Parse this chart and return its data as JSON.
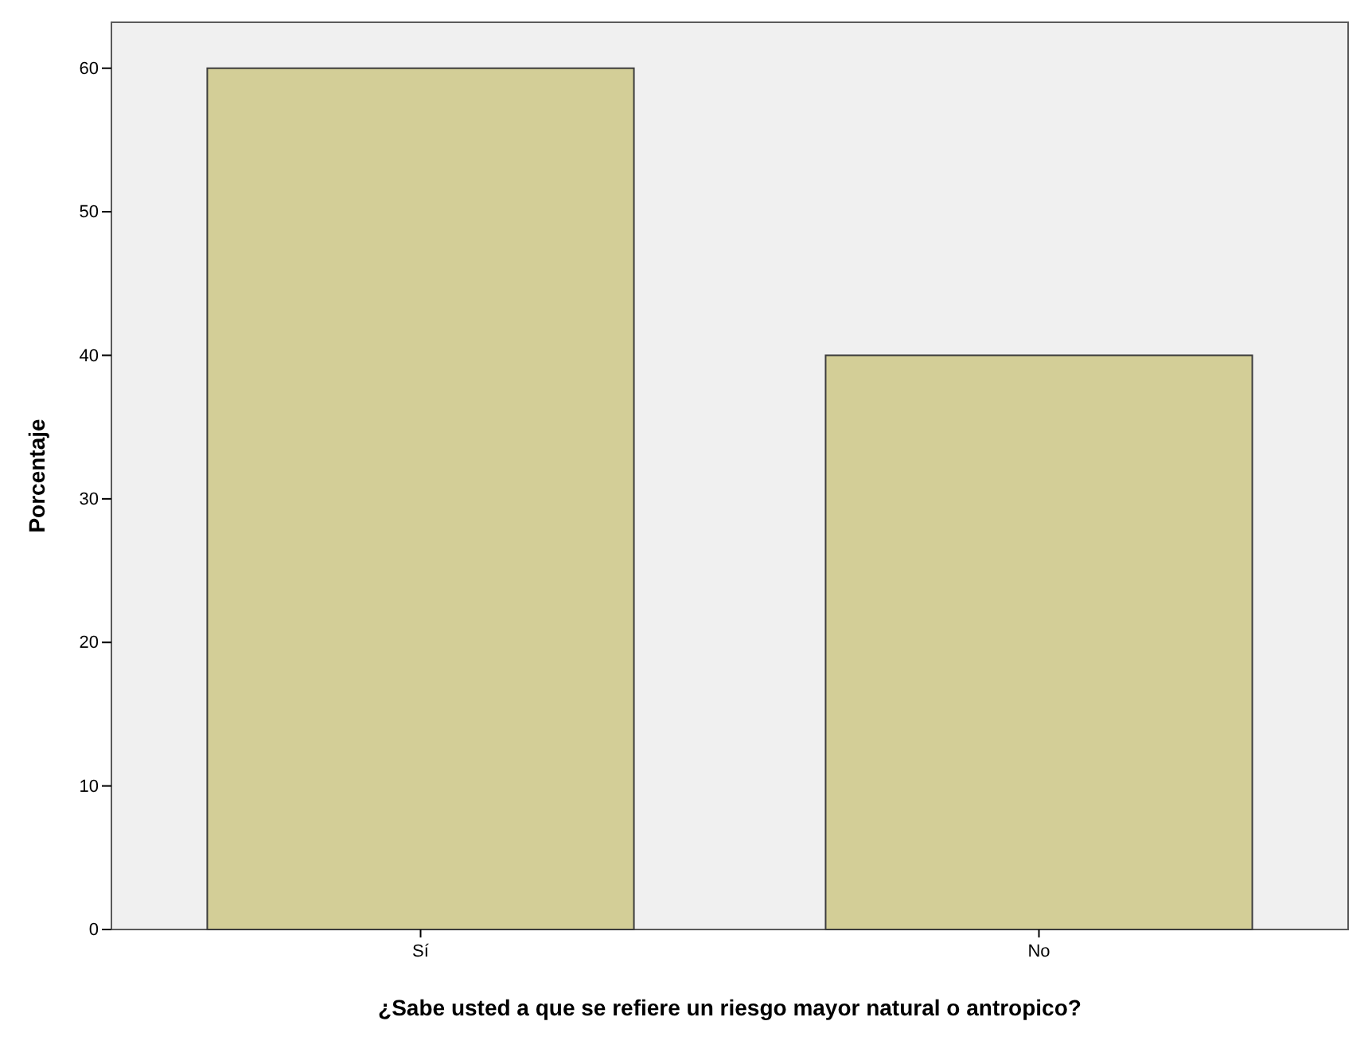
{
  "chart_data": {
    "type": "bar",
    "xlabel": "¿Sabe usted a que se refiere un riesgo mayor natural o antropico?",
    "ylabel": "Porcentaje",
    "categories": [
      "Sí",
      "No"
    ],
    "values": [
      60,
      40
    ],
    "color": "#d3ce97",
    "ylim": [
      0,
      63.2
    ],
    "yticks": [
      0,
      10,
      20,
      30,
      40,
      50,
      60
    ],
    "grid": false
  }
}
